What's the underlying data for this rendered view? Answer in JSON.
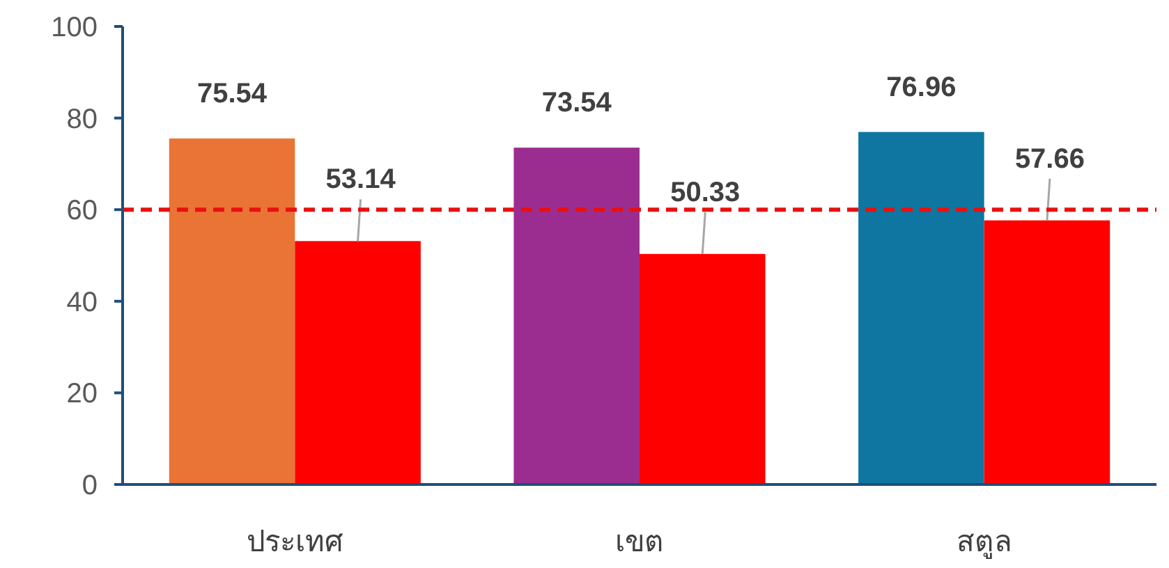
{
  "chart_data": {
    "type": "bar",
    "categories": [
      "ประเทศ",
      "เขต",
      "สตูล"
    ],
    "series": [
      {
        "colors": [
          "#ea7435",
          "#9b2d91",
          "#0e76a0"
        ],
        "values": [
          75.54,
          73.54,
          76.96
        ]
      },
      {
        "color": "#ff0000",
        "values": [
          53.14,
          50.33,
          57.66
        ]
      }
    ],
    "ylim": [
      0,
      100
    ],
    "yticks": [
      0,
      20,
      40,
      60,
      80,
      100
    ],
    "grid": false,
    "data_labels": true,
    "ref_lines": [
      {
        "axis": "y",
        "value": 60,
        "color": "#e81010",
        "line_style": "dashed"
      }
    ]
  }
}
